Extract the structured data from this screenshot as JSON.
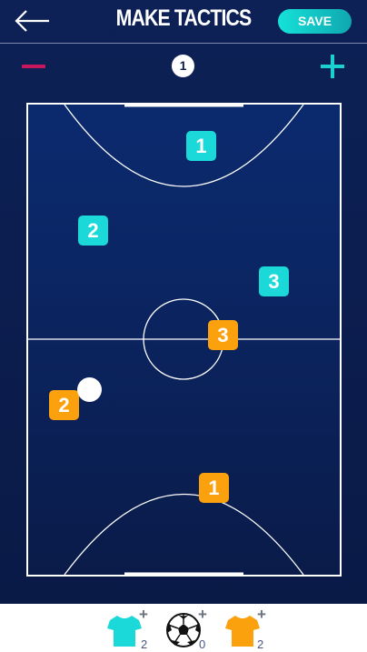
{
  "header": {
    "back_label": "back",
    "title": "MAKE TACTICS",
    "save_label": "SAVE"
  },
  "toolbar": {
    "frame_number": "1"
  },
  "players": {
    "home": [
      {
        "number": "1"
      },
      {
        "number": "2"
      },
      {
        "number": "3"
      }
    ],
    "away": [
      {
        "number": "3"
      },
      {
        "number": "2"
      },
      {
        "number": "1"
      }
    ]
  },
  "bottom_bar": {
    "home_count": "2",
    "ball_count": "0",
    "away_count": "2",
    "add_symbol": "+"
  },
  "colors": {
    "home": "#1ad9d8",
    "away": "#fba10e",
    "minus": "#c8175c",
    "plus": "#1ad1cf",
    "background": "#0b1c4a"
  }
}
